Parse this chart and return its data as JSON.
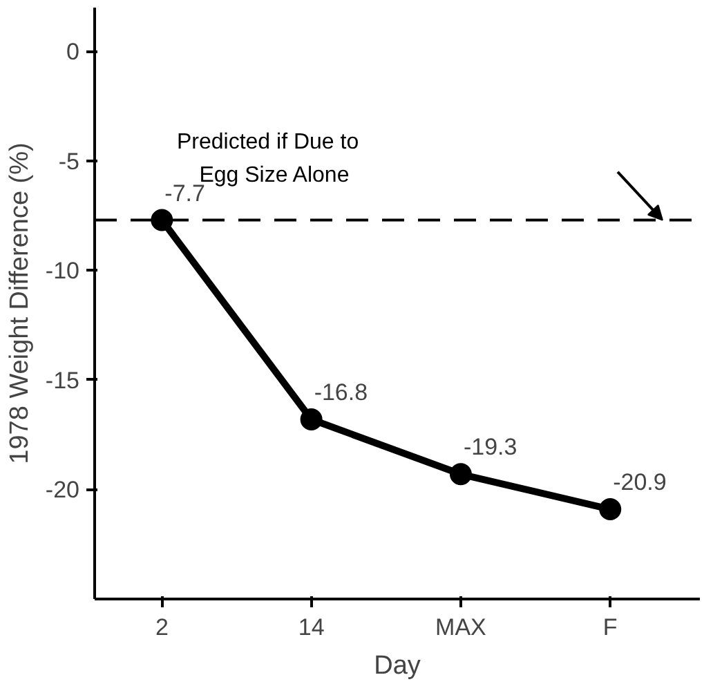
{
  "chart_data": {
    "type": "line",
    "xlabel": "Day",
    "ylabel": "1978 Weight Difference (%)",
    "categories": [
      "2",
      "14",
      "MAX",
      "F"
    ],
    "values": [
      -7.7,
      -16.8,
      -19.3,
      -20.9
    ],
    "color": "#000000",
    "marker": "circle",
    "line_style": "solid",
    "data_labels": true,
    "ylim": [
      -25,
      2
    ],
    "yticks": [
      -20,
      -15,
      -10,
      -5,
      0
    ],
    "ref_lines": [
      {
        "axis": "y",
        "value": -7.7,
        "label": "Predicted if Due to Egg Size Alone",
        "color": "#000000",
        "line_style": "dashed"
      }
    ]
  }
}
